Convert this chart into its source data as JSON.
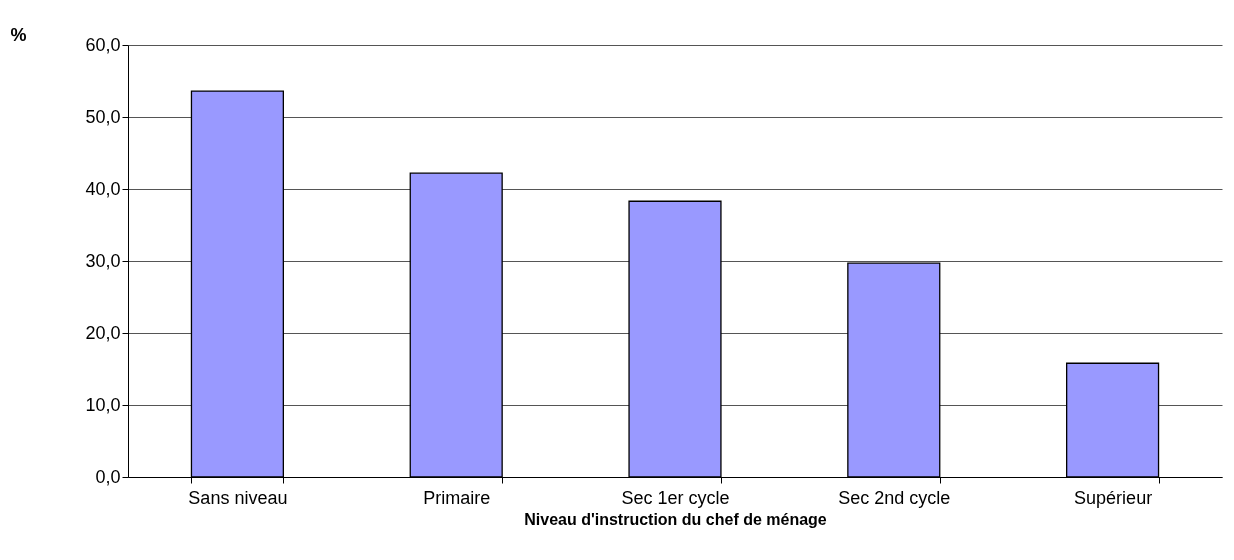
{
  "chart_data": {
    "type": "bar",
    "xlabel": "Niveau d'instruction du chef de ménage",
    "ylabel": "%",
    "categories": [
      "Sans niveau",
      "Primaire",
      "Sec 1er cycle",
      "Sec 2nd cycle",
      "Supérieur"
    ],
    "values": [
      53.6,
      42.2,
      38.3,
      29.7,
      15.8
    ],
    "color": "#9999ff",
    "ylim": [
      0,
      60
    ],
    "yticks": [
      {
        "value": 0,
        "label": "0,0"
      },
      {
        "value": 10,
        "label": "10,0"
      },
      {
        "value": 20,
        "label": "20,0"
      },
      {
        "value": 30,
        "label": "30,0"
      },
      {
        "value": 40,
        "label": "40,0"
      },
      {
        "value": 50,
        "label": "50,0"
      },
      {
        "value": 60,
        "label": "60,0"
      }
    ],
    "grid": "y"
  }
}
